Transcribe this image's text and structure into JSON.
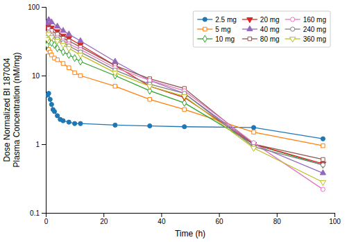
{
  "chart_data": {
    "type": "line",
    "xlabel": "Time (h)",
    "ylabel": "Dose Normalized BI 187004\nPlasma Concentration (nM/mg)",
    "log": "y",
    "grid": false,
    "legend": "upper right",
    "xlim": [
      0,
      100
    ],
    "ylim": [
      0.1,
      100
    ],
    "xticks": [
      0,
      20,
      40,
      60,
      80,
      100
    ],
    "yticks": [
      0.1,
      1,
      10,
      100
    ],
    "series": [
      {
        "name": "2.5 mg",
        "marker": "circle",
        "line_style": "solid",
        "x": [
          0.5,
          1.0,
          1.5,
          2.0,
          2.5,
          3.0,
          4.0,
          5.0,
          6.0,
          8.0,
          10.0,
          12.0,
          24.0,
          36.0,
          48.0,
          72.0,
          96.0
        ],
        "values": [
          5.2,
          5.5,
          4.5,
          3.8,
          3.2,
          3.0,
          2.6,
          2.3,
          2.2,
          2.1,
          2.0,
          2.0,
          1.9,
          1.85,
          1.8,
          1.75,
          1.2
        ]
      },
      {
        "name": "5 mg",
        "marker": "square-open",
        "line_style": "solid",
        "x": [
          0.5,
          1.0,
          1.5,
          2.0,
          3.0,
          4.0,
          6.0,
          8.0,
          10.0,
          12.0,
          24.0,
          36.0,
          48.0,
          72.0,
          96.0
        ],
        "values": [
          22,
          24,
          22,
          20,
          18,
          17,
          15,
          13,
          11,
          10,
          7.0,
          4.5,
          3.2,
          1.5,
          0.95
        ]
      },
      {
        "name": "10 mg",
        "marker": "diamond-open",
        "line_style": "solid",
        "x": [
          0.5,
          1.0,
          2.0,
          3.0,
          4.0,
          6.0,
          8.0,
          10.0,
          12.0,
          24.0,
          36.0,
          48.0,
          72.0,
          96.0
        ],
        "values": [
          28,
          32,
          30,
          28,
          25,
          22,
          20,
          18,
          16,
          10,
          6.0,
          4.0,
          1.0,
          0.5
        ]
      },
      {
        "name": "20 mg",
        "marker": "triangle-down",
        "line_style": "solid",
        "x": [
          0.5,
          1.0,
          2.0,
          4.0,
          6.0,
          8.0,
          12.0,
          24.0,
          36.0,
          48.0,
          72.0,
          96.0
        ],
        "values": [
          50,
          55,
          50,
          44,
          38,
          35,
          28,
          14,
          7.0,
          4.8,
          1.0,
          0.52
        ]
      },
      {
        "name": "40 mg",
        "marker": "triangle-up",
        "line_style": "solid",
        "x": [
          0.5,
          1.0,
          2.0,
          4.0,
          6.0,
          8.0,
          12.0,
          24.0,
          36.0,
          48.0,
          72.0,
          96.0
        ],
        "values": [
          58,
          65,
          60,
          52,
          45,
          40,
          32,
          16,
          8.5,
          5.5,
          1.0,
          0.38
        ]
      },
      {
        "name": "80 mg",
        "marker": "square-open",
        "line_style": "solid",
        "x": [
          0.5,
          1.0,
          2.0,
          4.0,
          6.0,
          8.0,
          12.0,
          24.0,
          36.0,
          48.0,
          72.0,
          96.0
        ],
        "values": [
          42,
          48,
          45,
          40,
          35,
          32,
          26,
          14,
          9.0,
          6.5,
          1.0,
          0.6
        ]
      },
      {
        "name": "160 mg",
        "marker": "circle-open",
        "line_style": "solid",
        "x": [
          0.5,
          1.0,
          2.0,
          4.0,
          6.0,
          8.0,
          12.0,
          24.0,
          36.0,
          48.0,
          72.0,
          96.0
        ],
        "values": [
          38,
          44,
          40,
          36,
          32,
          29,
          24,
          13,
          8.5,
          6.0,
          1.05,
          0.22
        ]
      },
      {
        "name": "240 mg",
        "marker": "circle-open",
        "line_style": "solid",
        "x": [
          0.5,
          1.0,
          2.0,
          4.0,
          6.0,
          8.0,
          12.0,
          24.0,
          36.0,
          48.0,
          72.0,
          96.0
        ],
        "values": [
          36,
          42,
          38,
          34,
          30,
          27,
          22,
          12,
          7.5,
          5.5,
          0.92,
          0.5
        ]
      },
      {
        "name": "360 mg",
        "marker": "triangle-down-open",
        "line_style": "solid",
        "x": [
          0.5,
          1.0,
          2.0,
          4.0,
          6.0,
          8.0,
          12.0,
          24.0,
          36.0,
          48.0,
          72.0,
          96.0
        ],
        "values": [
          34,
          40,
          36,
          32,
          28,
          25,
          20,
          11,
          7.0,
          5.0,
          0.88,
          0.28
        ]
      }
    ]
  }
}
